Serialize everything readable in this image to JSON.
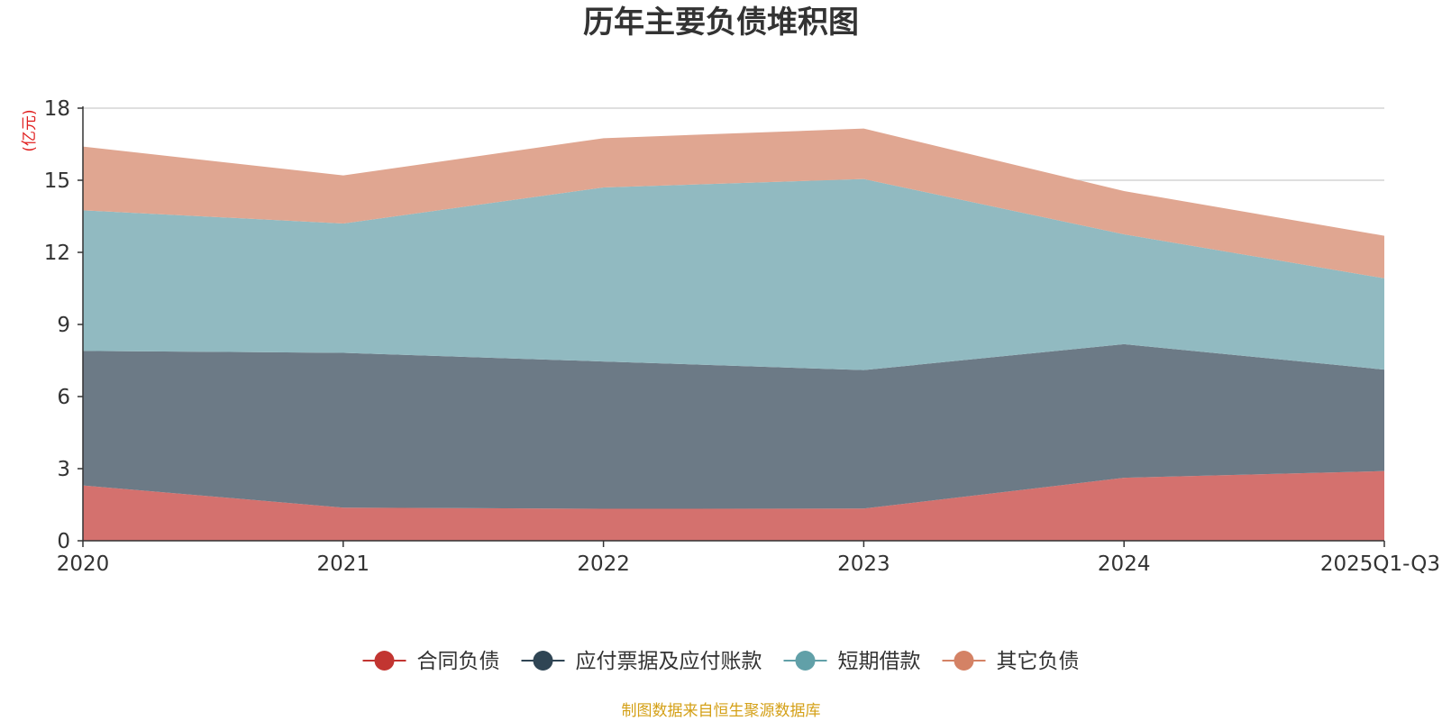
{
  "chart_data": {
    "type": "area",
    "stacked": true,
    "title": "历年主要负债堆积图",
    "y_unit": "(亿元)",
    "categories": [
      "2020",
      "2021",
      "2022",
      "2023",
      "2024",
      "2025Q1-Q3"
    ],
    "ylim": [
      0,
      18
    ],
    "yticks": [
      0,
      3,
      6,
      9,
      12,
      15,
      18
    ],
    "grid": true,
    "legend_position": "bottom",
    "series": [
      {
        "name": "合同负债",
        "color": "#c23531",
        "fill": "#d4716e",
        "values": [
          2.3,
          1.38,
          1.33,
          1.34,
          2.62,
          2.9
        ]
      },
      {
        "name": "应付票据及应付账款",
        "color": "#2f4554",
        "fill": "#6c7a86",
        "values": [
          5.6,
          6.44,
          6.13,
          5.76,
          5.56,
          4.22
        ]
      },
      {
        "name": "短期借款",
        "color": "#61a0a8",
        "fill": "#91bac1",
        "values": [
          5.85,
          5.38,
          7.24,
          7.95,
          4.57,
          3.8
        ]
      },
      {
        "name": "其它负债",
        "color": "#d48265",
        "fill": "#e0a691",
        "values": [
          2.65,
          2.0,
          2.05,
          2.1,
          1.8,
          1.77
        ]
      }
    ],
    "source": "制图数据来自恒生聚源数据库"
  }
}
